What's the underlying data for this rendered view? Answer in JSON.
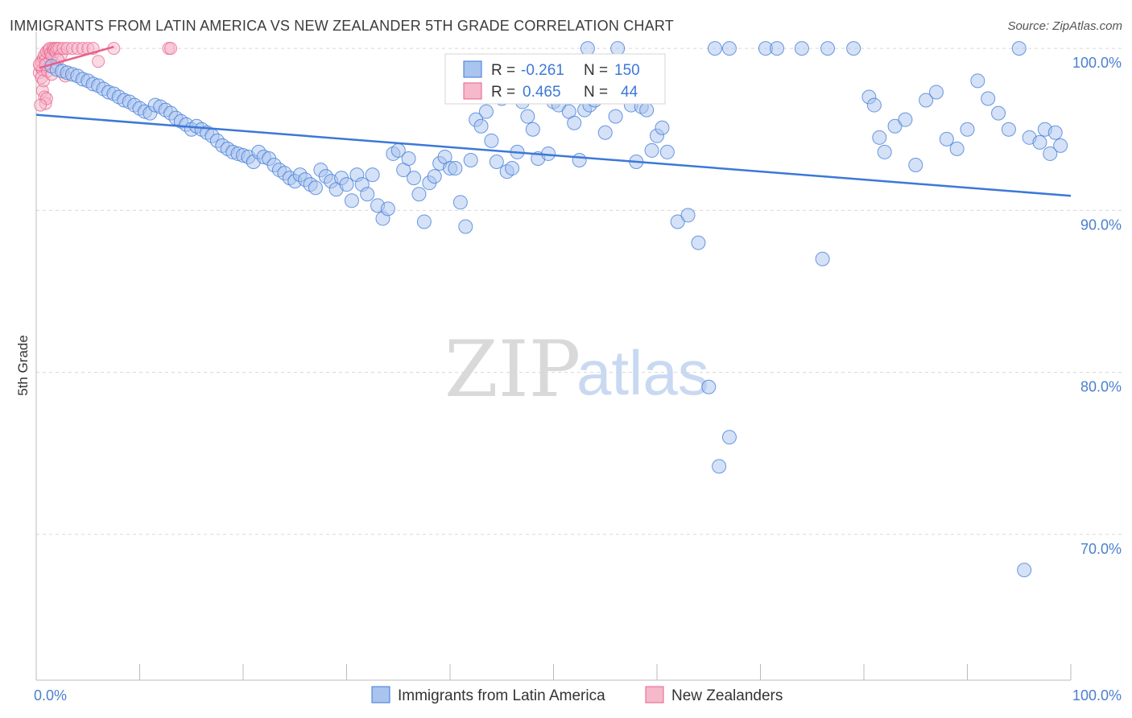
{
  "title": "IMMIGRANTS FROM LATIN AMERICA VS NEW ZEALANDER 5TH GRADE CORRELATION CHART",
  "source": "Source: ZipAtlas.com",
  "watermark": {
    "zip": "ZIP",
    "atlas": "atlas"
  },
  "colors": {
    "blue": "#3c78d8",
    "blue_fill": "#a9c4ee",
    "pink": "#e8608a",
    "pink_fill": "#f6b8cb",
    "grid": "#d8d8d8"
  },
  "legend_box": {
    "rows": [
      {
        "r_label": "R = ",
        "r_value": "-0.261",
        "n_label": "N = ",
        "n_value": "150",
        "series": "blue"
      },
      {
        "r_label": "R = ",
        "r_value": "0.465",
        "n_label": "N = ",
        "n_value": "44",
        "series": "pink"
      }
    ]
  },
  "chart_data": {
    "type": "scatter",
    "title": "IMMIGRANTS FROM LATIN AMERICA VS NEW ZEALANDER 5TH GRADE CORRELATION CHART",
    "xlabel": "",
    "ylabel": "5th Grade",
    "xlim": [
      0,
      100
    ],
    "ylim": [
      61,
      101
    ],
    "x_tick_labels": [
      "0.0%",
      "100.0%"
    ],
    "y_ticks": [
      {
        "value": 100,
        "label": "100.0%"
      },
      {
        "value": 90,
        "label": "90.0%"
      },
      {
        "value": 80,
        "label": "80.0%"
      },
      {
        "value": 70,
        "label": "70.0%"
      }
    ],
    "grid": true,
    "legend": [
      "Immigrants from Latin America",
      "New Zealanders"
    ],
    "series": [
      {
        "name": "Immigrants from Latin America",
        "color": "blue",
        "trend": {
          "x": [
            0,
            100
          ],
          "y": [
            95.9,
            90.9
          ]
        },
        "points": [
          [
            1.5,
            98.9
          ],
          [
            2.0,
            98.7
          ],
          [
            2.5,
            98.6
          ],
          [
            3.0,
            98.5
          ],
          [
            3.5,
            98.4
          ],
          [
            4.0,
            98.3
          ],
          [
            4.5,
            98.1
          ],
          [
            5.0,
            98.0
          ],
          [
            5.5,
            97.8
          ],
          [
            6.0,
            97.7
          ],
          [
            6.5,
            97.5
          ],
          [
            7.0,
            97.3
          ],
          [
            7.5,
            97.2
          ],
          [
            8.0,
            97.0
          ],
          [
            8.5,
            96.8
          ],
          [
            9.0,
            96.7
          ],
          [
            9.5,
            96.5
          ],
          [
            10.0,
            96.3
          ],
          [
            10.5,
            96.1
          ],
          [
            11.0,
            96.0
          ],
          [
            11.5,
            96.5
          ],
          [
            12.0,
            96.4
          ],
          [
            12.5,
            96.2
          ],
          [
            13.0,
            96.0
          ],
          [
            13.5,
            95.7
          ],
          [
            14.0,
            95.5
          ],
          [
            14.5,
            95.3
          ],
          [
            15.0,
            95.0
          ],
          [
            15.5,
            95.2
          ],
          [
            16.0,
            95.0
          ],
          [
            16.5,
            94.8
          ],
          [
            17.0,
            94.6
          ],
          [
            17.5,
            94.3
          ],
          [
            18.0,
            94.0
          ],
          [
            18.5,
            93.8
          ],
          [
            19.0,
            93.6
          ],
          [
            19.5,
            93.5
          ],
          [
            20.0,
            93.4
          ],
          [
            20.5,
            93.3
          ],
          [
            21.0,
            93.0
          ],
          [
            21.5,
            93.6
          ],
          [
            22.0,
            93.3
          ],
          [
            22.5,
            93.2
          ],
          [
            23.0,
            92.8
          ],
          [
            23.5,
            92.5
          ],
          [
            24.0,
            92.3
          ],
          [
            24.5,
            92.0
          ],
          [
            25.0,
            91.8
          ],
          [
            25.5,
            92.2
          ],
          [
            26.0,
            91.9
          ],
          [
            26.5,
            91.6
          ],
          [
            27.0,
            91.4
          ],
          [
            27.5,
            92.5
          ],
          [
            28.0,
            92.1
          ],
          [
            28.5,
            91.8
          ],
          [
            29.0,
            91.3
          ],
          [
            29.5,
            92.0
          ],
          [
            30.0,
            91.6
          ],
          [
            30.5,
            90.6
          ],
          [
            31.0,
            92.2
          ],
          [
            31.5,
            91.6
          ],
          [
            32.0,
            91.0
          ],
          [
            32.5,
            92.2
          ],
          [
            33.0,
            90.3
          ],
          [
            33.5,
            89.5
          ],
          [
            34.0,
            90.1
          ],
          [
            34.5,
            93.5
          ],
          [
            35.0,
            93.7
          ],
          [
            35.5,
            92.5
          ],
          [
            36.0,
            93.2
          ],
          [
            36.5,
            92.0
          ],
          [
            37.0,
            91.0
          ],
          [
            37.5,
            89.3
          ],
          [
            38.0,
            91.7
          ],
          [
            38.5,
            92.1
          ],
          [
            39.0,
            92.9
          ],
          [
            39.5,
            93.3
          ],
          [
            40.0,
            92.6
          ],
          [
            40.5,
            92.6
          ],
          [
            41.0,
            90.5
          ],
          [
            41.5,
            89.0
          ],
          [
            42.0,
            93.1
          ],
          [
            42.5,
            95.6
          ],
          [
            43.0,
            95.2
          ],
          [
            43.5,
            96.1
          ],
          [
            44.0,
            94.3
          ],
          [
            44.5,
            93.0
          ],
          [
            45.0,
            96.9
          ],
          [
            45.5,
            92.4
          ],
          [
            46.0,
            92.6
          ],
          [
            46.5,
            93.6
          ],
          [
            47.0,
            96.7
          ],
          [
            47.5,
            95.8
          ],
          [
            48.0,
            95.0
          ],
          [
            48.5,
            93.2
          ],
          [
            49.0,
            98.5
          ],
          [
            49.5,
            93.5
          ],
          [
            50.0,
            96.7
          ],
          [
            50.5,
            96.5
          ],
          [
            51.0,
            97.0
          ],
          [
            51.5,
            96.1
          ],
          [
            52.0,
            95.4
          ],
          [
            52.5,
            93.1
          ],
          [
            53.0,
            96.2
          ],
          [
            53.5,
            96.5
          ],
          [
            54.0,
            96.8
          ],
          [
            54.5,
            97.5
          ],
          [
            55.0,
            94.8
          ],
          [
            55.5,
            97.1
          ],
          [
            56.0,
            95.8
          ],
          [
            56.5,
            97.0
          ],
          [
            57.0,
            97.9
          ],
          [
            57.5,
            96.5
          ],
          [
            58.0,
            93.0
          ],
          [
            58.5,
            96.4
          ],
          [
            59.0,
            96.2
          ],
          [
            59.5,
            93.7
          ],
          [
            60.0,
            94.6
          ],
          [
            60.5,
            95.1
          ],
          [
            61.0,
            93.6
          ],
          [
            62.0,
            89.3
          ],
          [
            63.0,
            89.7
          ],
          [
            64.0,
            88.0
          ],
          [
            65.0,
            79.1
          ],
          [
            66.0,
            74.2
          ],
          [
            67.0,
            76.0
          ],
          [
            53.3,
            100.0
          ],
          [
            56.2,
            100.0
          ],
          [
            65.6,
            100.0
          ],
          [
            67.0,
            100.0
          ],
          [
            70.5,
            100.0
          ],
          [
            71.6,
            100.0
          ],
          [
            74.0,
            100.0
          ],
          [
            76.5,
            100.0
          ],
          [
            79.0,
            100.0
          ],
          [
            80.5,
            97.0
          ],
          [
            81.0,
            96.5
          ],
          [
            81.5,
            94.5
          ],
          [
            82.0,
            93.6
          ],
          [
            83.0,
            95.2
          ],
          [
            84.0,
            95.6
          ],
          [
            85.0,
            92.8
          ],
          [
            86.0,
            96.8
          ],
          [
            87.0,
            97.3
          ],
          [
            88.0,
            94.4
          ],
          [
            89.0,
            93.8
          ],
          [
            90.0,
            95.0
          ],
          [
            91.0,
            98.0
          ],
          [
            92.0,
            96.9
          ],
          [
            93.0,
            96.0
          ],
          [
            76.0,
            87.0
          ],
          [
            94.0,
            95.0
          ],
          [
            95.0,
            100.0
          ],
          [
            95.5,
            67.8
          ],
          [
            96.0,
            94.5
          ],
          [
            97.0,
            94.2
          ],
          [
            97.5,
            95.0
          ],
          [
            98.0,
            93.5
          ],
          [
            98.5,
            94.8
          ],
          [
            99.0,
            94.0
          ]
        ]
      },
      {
        "name": "New Zealanders",
        "color": "pink",
        "trend": {
          "x": [
            0.3,
            7.5
          ],
          "y": [
            98.8,
            100.1
          ]
        },
        "points": [
          [
            0.3,
            98.5
          ],
          [
            0.4,
            98.9
          ],
          [
            0.5,
            99.2
          ],
          [
            0.6,
            98.7
          ],
          [
            0.7,
            99.4
          ],
          [
            0.8,
            99.6
          ],
          [
            0.9,
            99.3
          ],
          [
            1.0,
            99.8
          ],
          [
            1.1,
            99.1
          ],
          [
            1.2,
            99.9
          ],
          [
            1.3,
            100.0
          ],
          [
            1.4,
            99.7
          ],
          [
            1.5,
            99.5
          ],
          [
            1.6,
            100.0
          ],
          [
            1.7,
            99.9
          ],
          [
            1.8,
            100.0
          ],
          [
            1.9,
            99.8
          ],
          [
            2.0,
            100.0
          ],
          [
            2.2,
            100.0
          ],
          [
            2.4,
            99.6
          ],
          [
            2.6,
            100.0
          ],
          [
            2.8,
            98.3
          ],
          [
            3.0,
            100.0
          ],
          [
            3.5,
            100.0
          ],
          [
            4.0,
            100.0
          ],
          [
            4.5,
            100.0
          ],
          [
            5.0,
            100.0
          ],
          [
            5.5,
            100.0
          ],
          [
            6.0,
            99.2
          ],
          [
            7.5,
            100.0
          ],
          [
            12.8,
            100.0
          ],
          [
            13.0,
            100.0
          ],
          [
            0.5,
            98.2
          ],
          [
            0.6,
            97.4
          ],
          [
            0.8,
            97.0
          ],
          [
            0.9,
            96.6
          ],
          [
            1.0,
            96.9
          ],
          [
            0.4,
            96.5
          ],
          [
            0.7,
            98.0
          ],
          [
            1.1,
            98.6
          ],
          [
            1.5,
            98.4
          ],
          [
            0.3,
            99.0
          ],
          [
            2.1,
            99.3
          ],
          [
            0.9,
            99.0
          ]
        ]
      }
    ]
  }
}
